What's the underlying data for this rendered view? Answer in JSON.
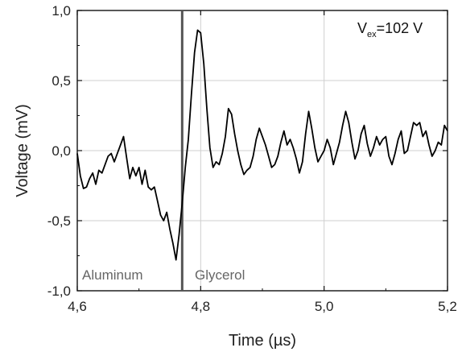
{
  "chart_data": {
    "type": "line",
    "title": "",
    "xlabel": "Time (µs)",
    "ylabel": "Voltage (mV)",
    "xlim": [
      4.6,
      5.2
    ],
    "ylim": [
      -1.0,
      1.0
    ],
    "xticks": [
      {
        "value": 4.6,
        "label": "4,6"
      },
      {
        "value": 4.8,
        "label": "4,8"
      },
      {
        "value": 5.0,
        "label": "5,0"
      },
      {
        "value": 5.2,
        "label": "5,2"
      }
    ],
    "yticks": [
      {
        "value": -1.0,
        "label": "-1,0"
      },
      {
        "value": -0.5,
        "label": "-0,5"
      },
      {
        "value": 0.0,
        "label": "0,0"
      },
      {
        "value": 0.5,
        "label": "0,5"
      },
      {
        "value": 1.0,
        "label": "1,0"
      }
    ],
    "grid": true,
    "interface_line": {
      "x": 4.77
    },
    "annotations": {
      "voltage_main": "V",
      "voltage_sub": "ex",
      "voltage_value": "=102 V",
      "left_region": "Aluminum",
      "right_region": "Glycerol"
    },
    "series": [
      {
        "line_color": "#000000",
        "x": [
          4.6,
          4.605,
          4.61,
          4.615,
          4.62,
          4.625,
          4.63,
          4.635,
          4.64,
          4.645,
          4.65,
          4.655,
          4.66,
          4.665,
          4.67,
          4.675,
          4.68,
          4.685,
          4.69,
          4.695,
          4.7,
          4.705,
          4.71,
          4.715,
          4.72,
          4.725,
          4.73,
          4.735,
          4.74,
          4.745,
          4.75,
          4.755,
          4.76,
          4.765,
          4.77,
          4.775,
          4.78,
          4.785,
          4.79,
          4.795,
          4.8,
          4.805,
          4.81,
          4.815,
          4.82,
          4.825,
          4.83,
          4.835,
          4.84,
          4.845,
          4.85,
          4.855,
          4.86,
          4.865,
          4.87,
          4.875,
          4.88,
          4.885,
          4.89,
          4.895,
          4.9,
          4.905,
          4.91,
          4.915,
          4.92,
          4.925,
          4.93,
          4.935,
          4.94,
          4.945,
          4.95,
          4.955,
          4.96,
          4.965,
          4.97,
          4.975,
          4.98,
          4.985,
          4.99,
          4.995,
          5.0,
          5.005,
          5.01,
          5.015,
          5.02,
          5.025,
          5.03,
          5.035,
          5.04,
          5.045,
          5.05,
          5.055,
          5.06,
          5.065,
          5.07,
          5.075,
          5.08,
          5.085,
          5.09,
          5.095,
          5.1,
          5.105,
          5.11,
          5.115,
          5.12,
          5.125,
          5.13,
          5.135,
          5.14,
          5.145,
          5.15,
          5.155,
          5.16,
          5.165,
          5.17,
          5.175,
          5.18,
          5.185,
          5.19,
          5.195,
          5.2
        ],
        "y": [
          -0.02,
          -0.18,
          -0.27,
          -0.26,
          -0.2,
          -0.16,
          -0.24,
          -0.14,
          -0.16,
          -0.1,
          -0.04,
          -0.02,
          -0.08,
          -0.02,
          0.04,
          0.1,
          -0.05,
          -0.2,
          -0.12,
          -0.18,
          -0.12,
          -0.24,
          -0.14,
          -0.26,
          -0.28,
          -0.26,
          -0.36,
          -0.46,
          -0.5,
          -0.44,
          -0.56,
          -0.66,
          -0.78,
          -0.6,
          -0.38,
          -0.12,
          0.08,
          0.4,
          0.7,
          0.86,
          0.84,
          0.62,
          0.3,
          0.02,
          -0.12,
          -0.08,
          -0.1,
          -0.02,
          0.1,
          0.3,
          0.26,
          0.12,
          0.0,
          -0.1,
          -0.17,
          -0.14,
          -0.12,
          -0.04,
          0.08,
          0.16,
          0.1,
          0.04,
          -0.04,
          -0.12,
          -0.1,
          -0.04,
          0.06,
          0.14,
          0.04,
          0.08,
          0.02,
          -0.06,
          -0.16,
          -0.08,
          0.12,
          0.28,
          0.16,
          0.02,
          -0.08,
          -0.04,
          0.0,
          0.08,
          0.02,
          -0.1,
          -0.02,
          0.06,
          0.18,
          0.28,
          0.2,
          0.06,
          -0.06,
          0.0,
          0.12,
          0.18,
          0.05,
          -0.04,
          0.02,
          0.1,
          0.04,
          0.08,
          0.1,
          -0.04,
          -0.1,
          -0.02,
          0.08,
          0.14,
          -0.02,
          0.0,
          0.1,
          0.2,
          0.18,
          0.2,
          0.1,
          0.14,
          0.04,
          -0.04,
          0.0,
          0.06,
          0.04,
          0.18,
          0.14
        ]
      }
    ]
  }
}
